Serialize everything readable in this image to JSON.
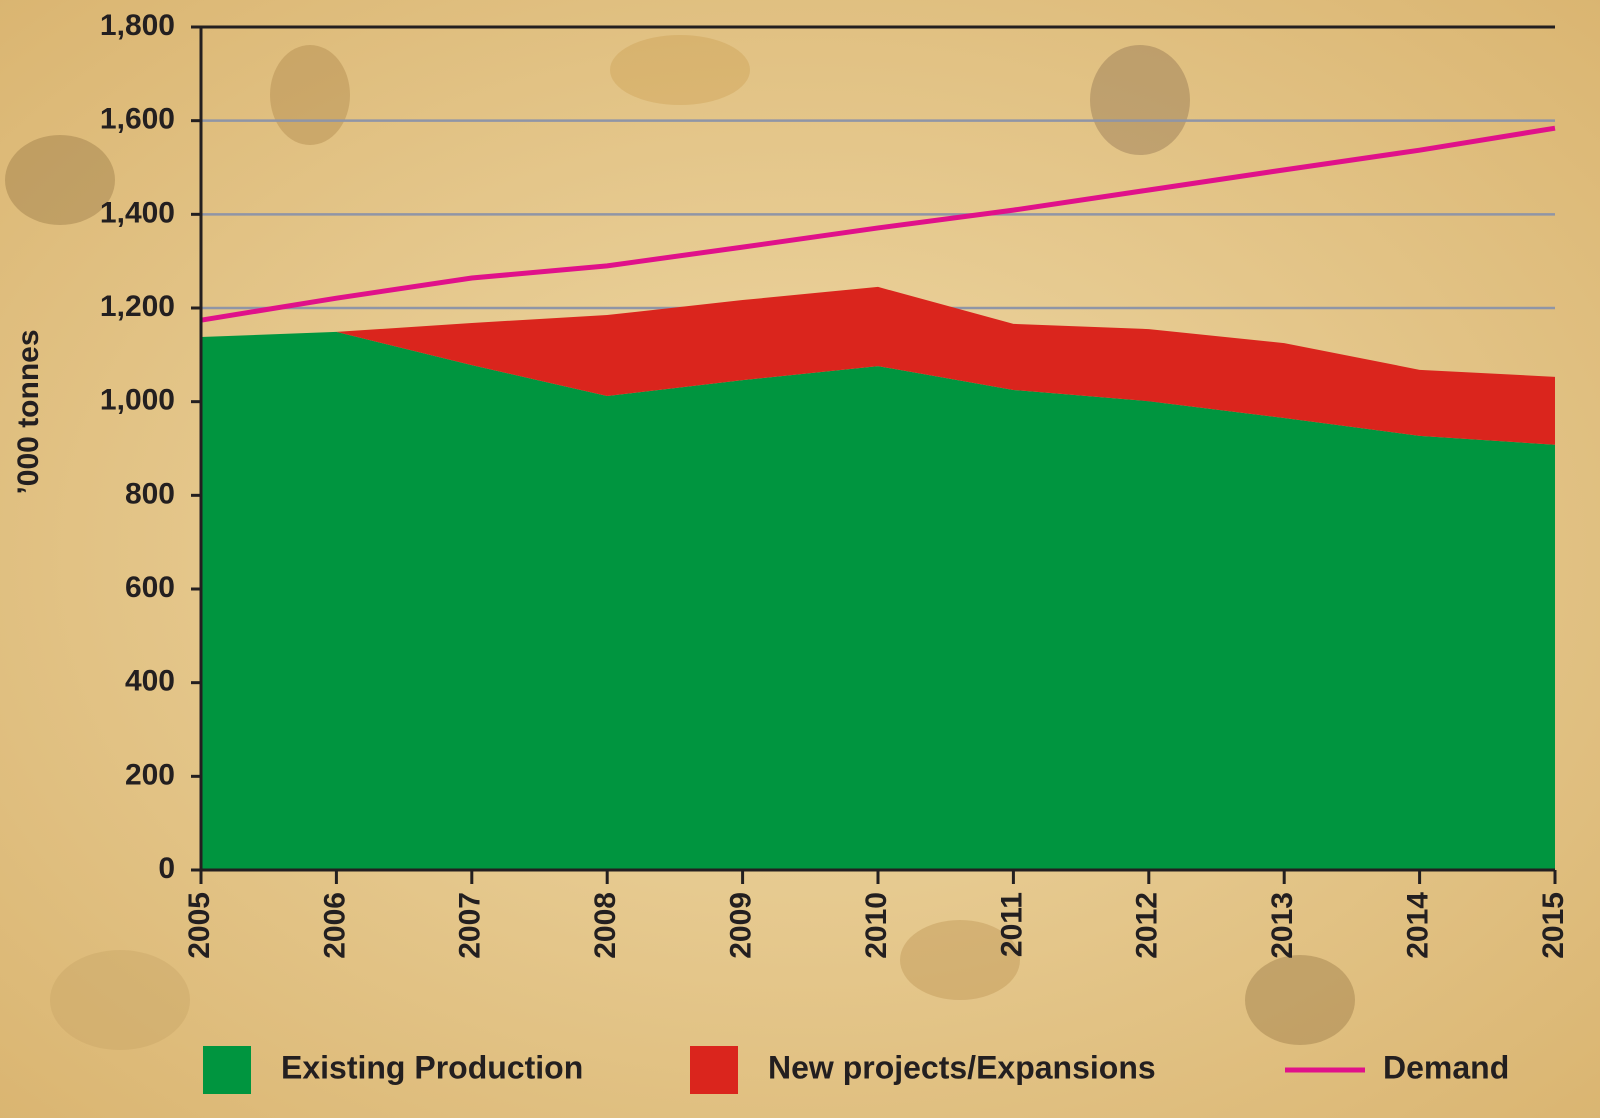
{
  "chart_data": {
    "type": "stacked_area",
    "y_axis_label": "’000 tonnes",
    "x": [
      2005,
      2006,
      2007,
      2008,
      2009,
      2010,
      2011,
      2012,
      2013,
      2014,
      2015
    ],
    "xlim": [
      2005,
      2015
    ],
    "xticks": [
      2005,
      2006,
      2007,
      2008,
      2009,
      2010,
      2011,
      2012,
      2013,
      2014,
      2015
    ],
    "ylim": [
      0,
      1800
    ],
    "yticks": [
      0,
      200,
      400,
      600,
      800,
      {
        "value": 1000,
        "label": "1,000"
      },
      {
        "value": 1200,
        "label": "1,200"
      },
      {
        "value": 1400,
        "label": "1,400"
      },
      {
        "value": 1600,
        "label": "1,600"
      },
      {
        "value": 1800,
        "label": "1,800"
      }
    ],
    "grid": true,
    "series": [
      {
        "name": "Existing Production",
        "color": "#00953f",
        "values": [
          1138,
          1149,
          1078,
          1012,
          1046,
          1076,
          1025,
          1001,
          965,
          927,
          908
        ]
      },
      {
        "name": "New projects/Expansions",
        "color": "#da251d",
        "values": [
          0,
          0,
          90,
          173,
          171,
          169,
          141,
          154,
          160,
          141,
          145
        ]
      },
      {
        "name": "Demand",
        "type": "line",
        "color": "#e0118a",
        "values": [
          1174,
          1221,
          1264,
          1290,
          1330,
          1371,
          1409,
          1452,
          1495,
          1537,
          1584
        ]
      }
    ]
  }
}
